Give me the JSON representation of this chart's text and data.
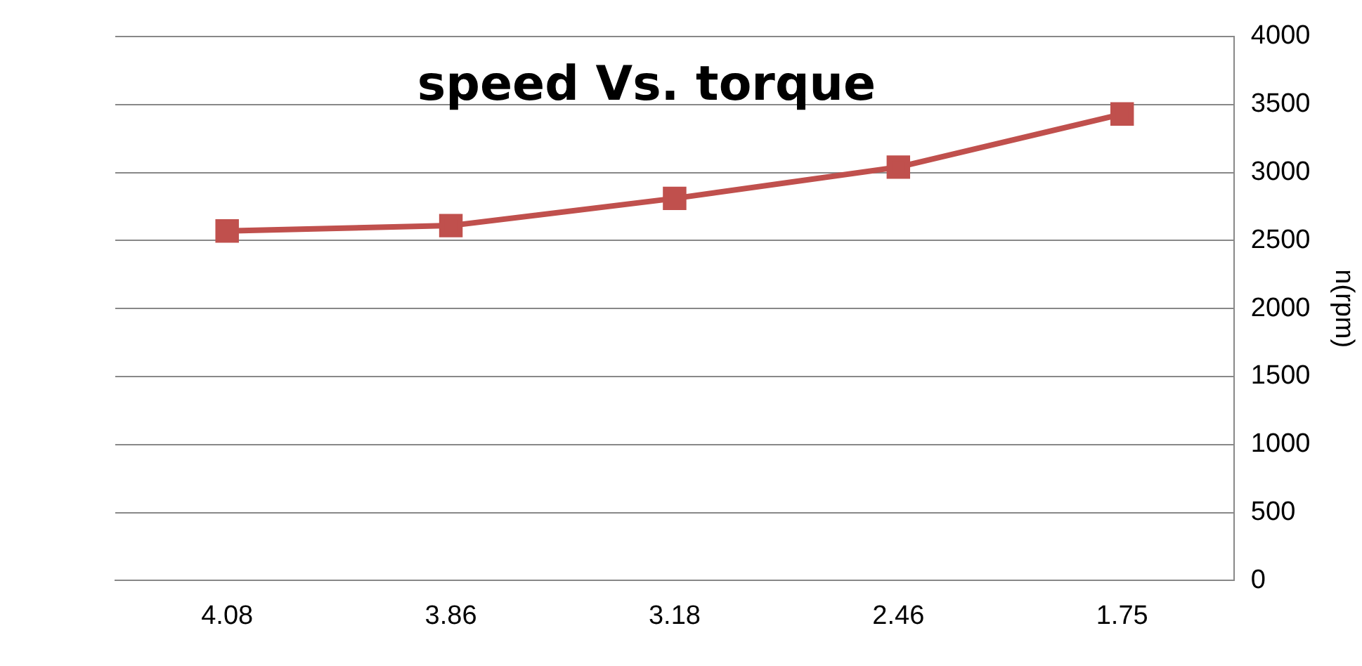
{
  "chart_data": {
    "type": "line",
    "title": "speed Vs. torque",
    "ylabel": "n(rpm)",
    "categories": [
      "4.08",
      "3.86",
      "3.18",
      "2.46",
      "1.75"
    ],
    "series": [
      {
        "color": "#c0504d",
        "values": [
          2570,
          2610,
          2810,
          3040,
          3430
        ]
      }
    ],
    "ylim": [
      0,
      4000
    ],
    "yticks": [
      0,
      500,
      1000,
      1500,
      2000,
      2500,
      3000,
      3500,
      4000
    ],
    "grid": "y",
    "legend": false,
    "marker": "square",
    "line_style": "solid"
  }
}
